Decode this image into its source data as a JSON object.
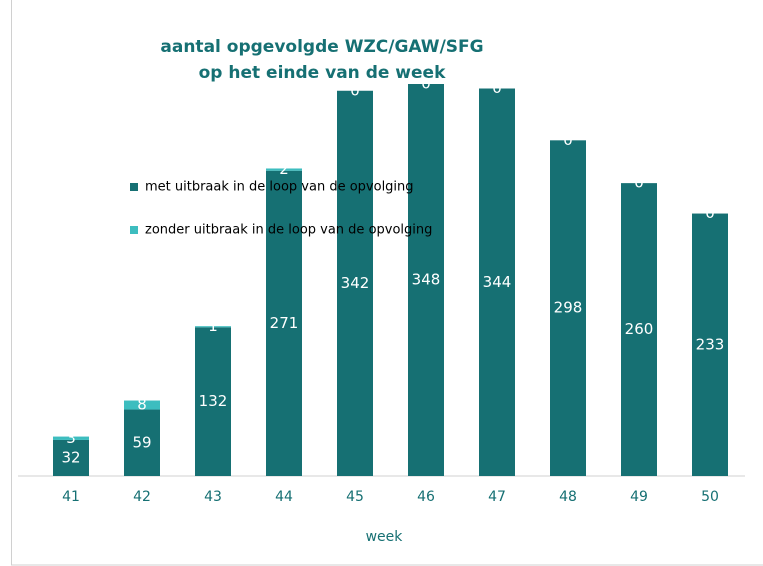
{
  "chart_data": {
    "type": "bar",
    "stacked": true,
    "title": [
      "aantal opgevolgde WZC/GAW/SFG",
      "op het einde van de week"
    ],
    "x_label": "week",
    "categories": [
      "41",
      "42",
      "43",
      "44",
      "45",
      "46",
      "47",
      "48",
      "49",
      "50"
    ],
    "series": [
      {
        "name": "met uitbraak in de loop van de opvolging",
        "color": "#167073",
        "values": [
          32,
          59,
          132,
          271,
          342,
          348,
          344,
          298,
          260,
          233
        ]
      },
      {
        "name": "zonder uitbraak in de loop van de opvolging",
        "color": "#3dbdbf",
        "values": [
          3,
          8,
          1,
          2,
          0,
          0,
          0,
          0,
          0,
          0
        ]
      }
    ],
    "legend": "top-left"
  }
}
